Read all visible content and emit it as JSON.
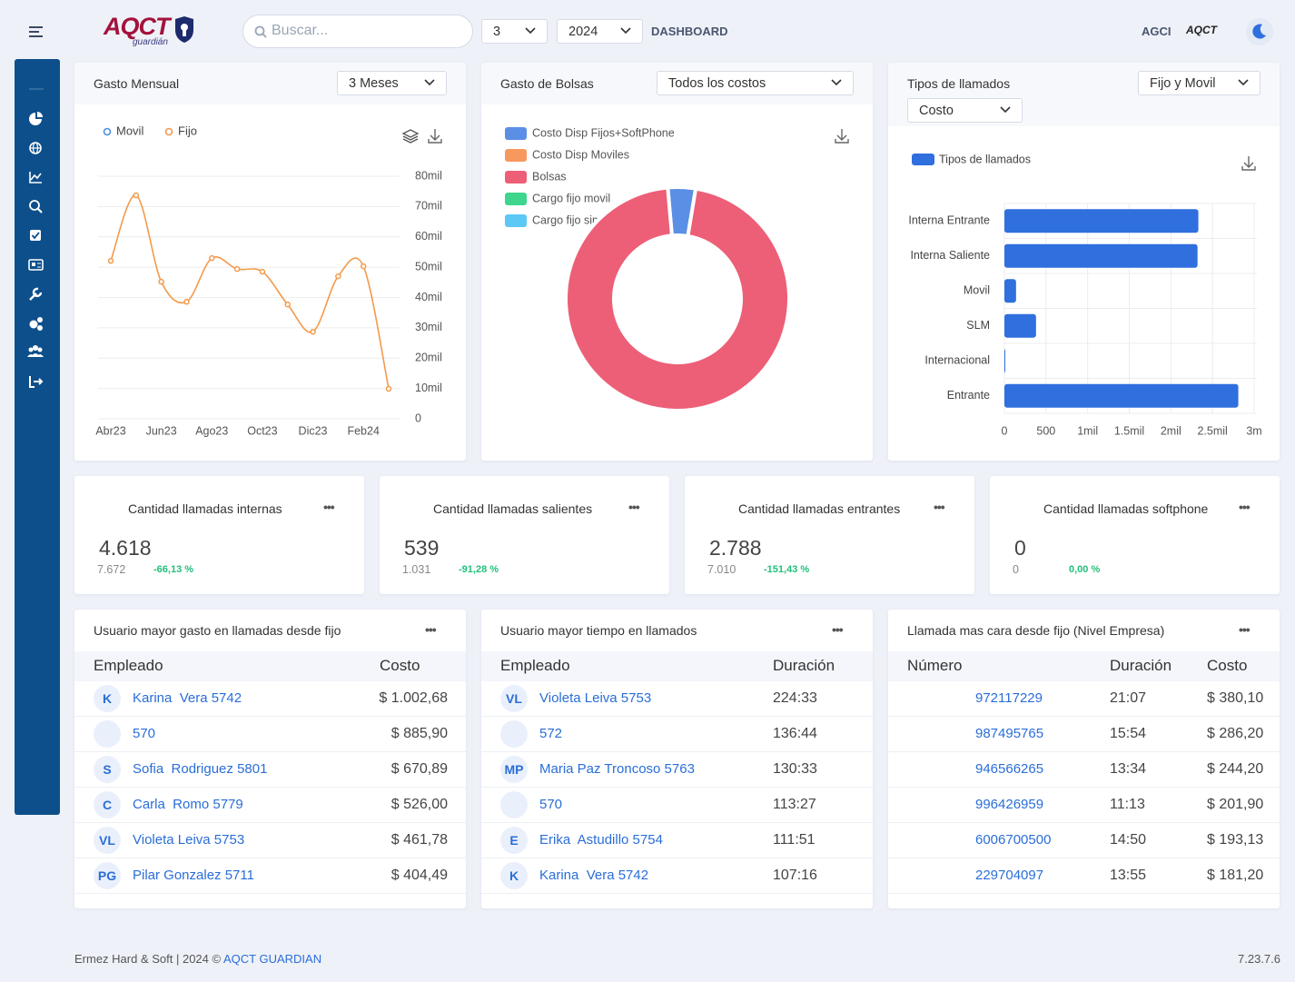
{
  "header": {
    "logo": "AQCT",
    "logo_tagline": "guardián",
    "search_placeholder": "Buscar...",
    "month": "3",
    "year": "2024",
    "nav_link": "DASHBOARD",
    "user": "AGCI"
  },
  "chart_data": [
    {
      "type": "line",
      "title": "Gasto Mensual",
      "filter": "3 Meses",
      "categories": [
        "Abr23",
        null,
        "Jun23",
        null,
        "Ago23",
        null,
        "Oct23",
        null,
        "Dic23",
        null,
        "Feb24",
        null
      ],
      "series": [
        {
          "name": "Movil",
          "color": "#4a90e2",
          "values": [
            null,
            null,
            null,
            null,
            null,
            null,
            null,
            null,
            null,
            null,
            null,
            null
          ]
        },
        {
          "name": "Fijo",
          "color": "#f39a4c",
          "values": [
            52100,
            73700,
            45200,
            38600,
            53000,
            49400,
            48500,
            37700,
            28700,
            47000,
            50300,
            9900
          ]
        }
      ],
      "ylim": [
        0,
        80000
      ],
      "yticks": [
        0,
        {
          "value": 10000,
          "label": "10mil"
        },
        {
          "value": 20000,
          "label": "20mil"
        },
        {
          "value": 30000,
          "label": "30mil"
        },
        {
          "value": 40000,
          "label": "40mil"
        },
        {
          "value": 50000,
          "label": "50mil"
        },
        {
          "value": 60000,
          "label": "60mil"
        },
        {
          "value": 70000,
          "label": "70mil"
        },
        {
          "value": 80000,
          "label": "80mil"
        }
      ],
      "grid": true
    },
    {
      "type": "pie",
      "title": "Gasto de Bolsas",
      "filter": "Todos los costos",
      "donut": true,
      "categories": [
        "Costo Disp Fijos+SoftPhone",
        "Costo Disp Moviles",
        "Bolsas",
        "Cargo fijo movil",
        "Cargo fijo sim"
      ],
      "colors": [
        "#5b8fe6",
        "#f7995f",
        "#ec5f77",
        "#3dd68c",
        "#5bc8f5"
      ],
      "values": [
        4,
        0,
        96,
        0,
        0
      ]
    },
    {
      "type": "hbar",
      "title": "Tipos de llamados",
      "filters": [
        "Fijo y Movil",
        "Costo"
      ],
      "categories": [
        "Interna Entrante",
        "Interna Saliente",
        "Movil",
        "SLM",
        "Internacional",
        "Entrante"
      ],
      "series": [
        {
          "name": "Tipos de llamados",
          "color": "#2f6fde",
          "values": [
            2330,
            2320,
            140,
            380,
            10,
            2810
          ]
        }
      ],
      "xlim": [
        0,
        3000
      ],
      "xticks": [
        0,
        500,
        {
          "value": 1000,
          "label": "1mil"
        },
        {
          "value": 1500,
          "label": "1.5mil"
        },
        {
          "value": 2000,
          "label": "2mil"
        },
        {
          "value": 2500,
          "label": "2.5mil"
        },
        {
          "value": 3000,
          "label": "3m"
        }
      ],
      "grid": true
    }
  ],
  "kpis": [
    {
      "title": "Cantidad llamadas internas",
      "value": "4.618",
      "previous": "7.672",
      "change": "-66,13 %"
    },
    {
      "title": "Cantidad llamadas salientes",
      "value": "539",
      "previous": "1.031",
      "change": "-91,28 %"
    },
    {
      "title": "Cantidad llamadas entrantes",
      "value": "2.788",
      "previous": "7.010",
      "change": "-151,43 %"
    },
    {
      "title": "Cantidad llamadas softphone",
      "value": "0",
      "previous": "0",
      "change": "0,00 %"
    }
  ],
  "tables": [
    {
      "title": "Usuario mayor gasto en llamadas desde fijo",
      "columns": [
        "Empleado",
        "Costo"
      ],
      "rows": [
        {
          "avatar": "K",
          "name": "Karina  Vera 5742",
          "cost": "$ 1.002,68"
        },
        {
          "name": "570",
          "cost": "$ 885,90"
        },
        {
          "avatar": "S",
          "name": "Sofia  Rodriguez 5801",
          "cost": "$ 670,89"
        },
        {
          "avatar": "C",
          "name": "Carla  Romo 5779",
          "cost": "$ 526,00"
        },
        {
          "avatar": "VL",
          "name": "Violeta Leiva 5753",
          "cost": "$ 461,78"
        },
        {
          "avatar": "PG",
          "name": "Pilar Gonzalez 5711",
          "cost": "$ 404,49"
        }
      ]
    },
    {
      "title": "Usuario mayor tiempo en llamados",
      "columns": [
        "Empleado",
        "Duración"
      ],
      "rows": [
        {
          "avatar": "VL",
          "name": "Violeta Leiva 5753",
          "duration": "224:33"
        },
        {
          "name": "572",
          "duration": "136:44"
        },
        {
          "avatar": "MP",
          "name": "Maria Paz Troncoso 5763",
          "duration": "130:33"
        },
        {
          "name": "570",
          "duration": "113:27"
        },
        {
          "avatar": "E",
          "name": "Erika  Astudillo 5754",
          "duration": "111:51"
        },
        {
          "avatar": "K",
          "name": "Karina  Vera 5742",
          "duration": "107:16"
        }
      ]
    },
    {
      "title": "Llamada mas cara desde fijo (Nivel Empresa)",
      "columns": [
        "Número",
        "Duración",
        "Costo"
      ],
      "rows": [
        {
          "number": "972117229",
          "duration": "21:07",
          "cost": "$ 380,10"
        },
        {
          "number": "987495765",
          "duration": "15:54",
          "cost": "$ 286,20"
        },
        {
          "number": "946566265",
          "duration": "13:34",
          "cost": "$ 244,20"
        },
        {
          "number": "996426959",
          "duration": "11:13",
          "cost": "$ 201,90"
        },
        {
          "number": "6006700500",
          "duration": "14:50",
          "cost": "$ 193,13"
        },
        {
          "number": "229704097",
          "duration": "13:55",
          "cost": "$ 181,20"
        }
      ]
    }
  ],
  "footer": {
    "text": "Ermez Hard & Soft | 2024 © ",
    "link": "AQCT GUARDIAN",
    "version": "7.23.7.6"
  }
}
